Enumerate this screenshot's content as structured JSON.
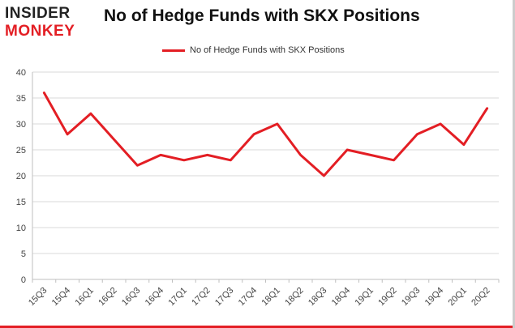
{
  "logo": {
    "line1": "INSIDER",
    "line2": "MONKEY"
  },
  "colors": {
    "series": "#e31e24",
    "grid": "#d9d9d9",
    "axis": "#bfbfbf",
    "text": "#444444"
  },
  "chart_data": {
    "type": "line",
    "title": "No of Hedge Funds with SKX Positions",
    "xlabel": "",
    "ylabel": "",
    "ylim": [
      0,
      40
    ],
    "yticks": [
      0,
      5,
      10,
      15,
      20,
      25,
      30,
      35,
      40
    ],
    "grid": true,
    "legend": "top-center",
    "categories": [
      "15Q3",
      "15Q4",
      "16Q1",
      "16Q2",
      "16Q3",
      "16Q4",
      "17Q1",
      "17Q2",
      "17Q3",
      "17Q4",
      "18Q1",
      "18Q2",
      "18Q3",
      "18Q4",
      "19Q1",
      "19Q2",
      "19Q3",
      "19Q4",
      "20Q1",
      "20Q2"
    ],
    "series": [
      {
        "name": "No of Hedge Funds with SKX Positions",
        "values": [
          36,
          28,
          32,
          27,
          22,
          24,
          23,
          24,
          23,
          28,
          30,
          24,
          20,
          25,
          24,
          23,
          28,
          30,
          26,
          33
        ]
      }
    ]
  }
}
